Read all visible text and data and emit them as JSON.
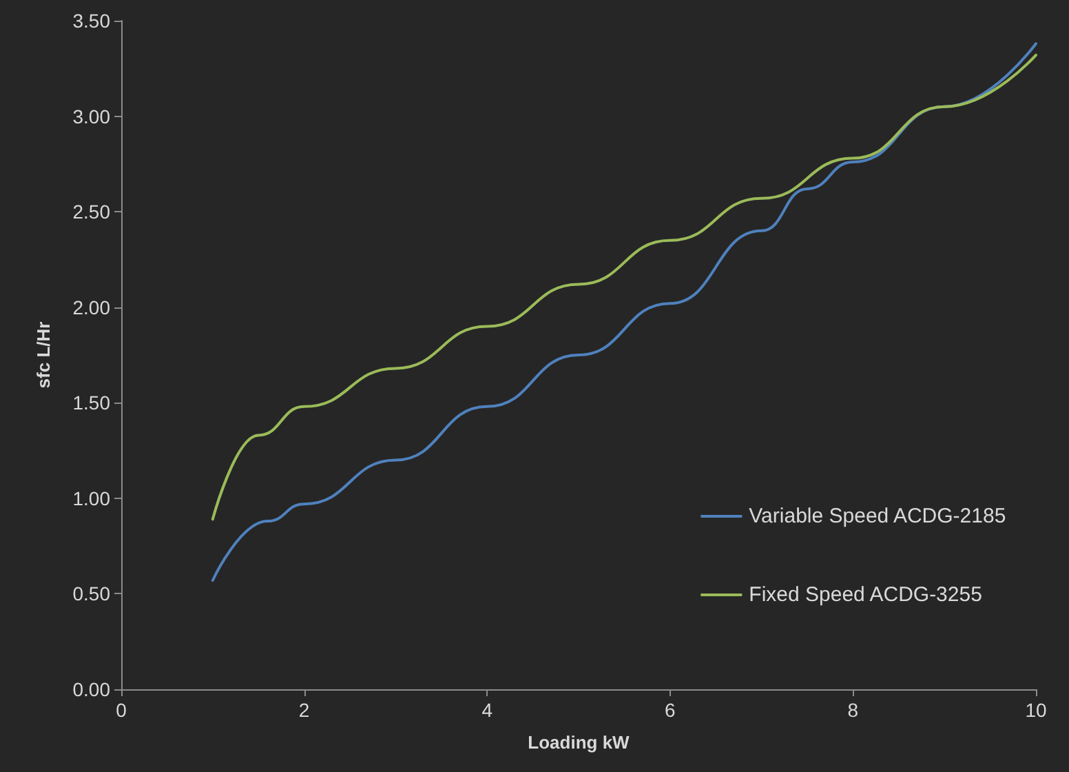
{
  "chart_data": {
    "type": "line",
    "xlabel": "Loading kW",
    "ylabel": "sfc L/Hr",
    "xlim": [
      0,
      10
    ],
    "xticks": [
      0,
      2,
      4,
      6,
      8,
      10
    ],
    "ylim": [
      0,
      3.5
    ],
    "yticks": [
      {
        "value": 0,
        "label": "0.00"
      },
      {
        "value": 0.5,
        "label": "0.50"
      },
      {
        "value": 1,
        "label": "1.00"
      },
      {
        "value": 1.5,
        "label": "1.50"
      },
      {
        "value": 2,
        "label": "2.00"
      },
      {
        "value": 2.5,
        "label": "2.50"
      },
      {
        "value": 3,
        "label": "3.00"
      },
      {
        "value": 3.5,
        "label": "3.50"
      }
    ],
    "grid": false,
    "legend": "right",
    "marker": "none",
    "series": [
      {
        "name": "Variable Speed ACDG-2185",
        "color": "#4f81bd",
        "x": [
          1,
          1.6,
          2,
          3,
          4,
          5,
          6,
          7,
          7.5,
          8,
          9,
          10
        ],
        "values": [
          0.57,
          0.88,
          0.97,
          1.2,
          1.48,
          1.75,
          2.02,
          2.4,
          2.62,
          2.76,
          3.05,
          3.38
        ]
      },
      {
        "name": "Fixed Speed ACDG-3255",
        "color": "#9bbb59",
        "x": [
          1,
          1.5,
          2,
          3,
          4,
          5,
          6,
          7,
          8,
          9,
          10
        ],
        "values": [
          0.89,
          1.33,
          1.48,
          1.68,
          1.9,
          2.12,
          2.35,
          2.57,
          2.78,
          3.05,
          3.32
        ]
      }
    ]
  }
}
